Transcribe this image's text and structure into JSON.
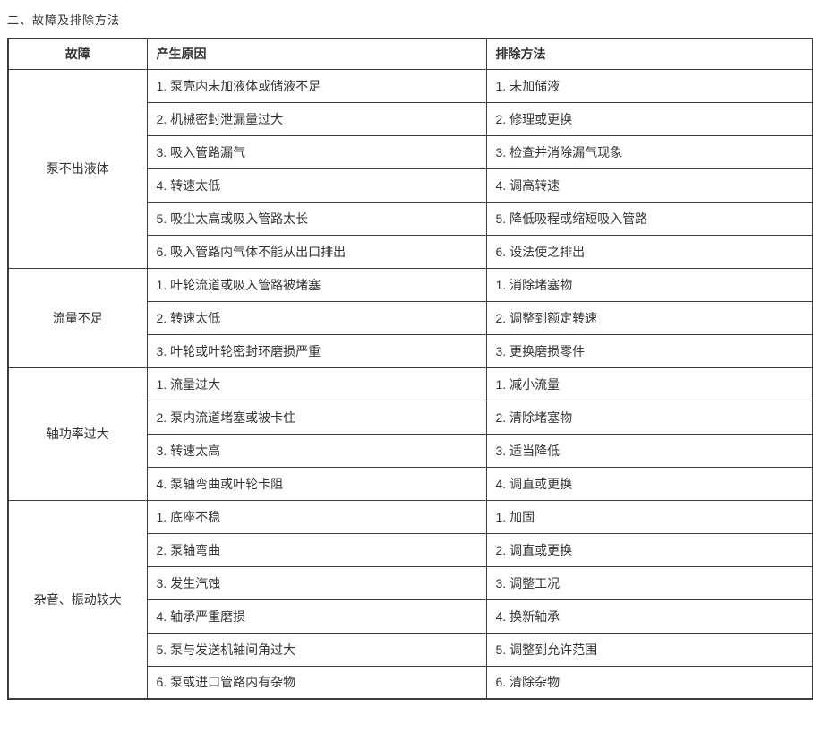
{
  "title": "二、故障及排除方法",
  "colors": {
    "background": "#ffffff",
    "text": "#333333",
    "border": "#3c3c3c"
  },
  "table": {
    "headers": [
      "故障",
      "产生原因",
      "排除方法"
    ],
    "groups": [
      {
        "fault": "泵不出液体",
        "causes": [
          "1. 泵壳内未加液体或储液不足",
          "2. 机械密封泄漏量过大",
          "3. 吸入管路漏气",
          "4. 转速太低",
          "5. 吸尘太高或吸入管路太长",
          "6. 吸入管路内气体不能从出口排出"
        ],
        "fixes": [
          "1. 未加储液",
          "2. 修理或更换",
          "3. 检查并消除漏气现象",
          "4. 调高转速",
          "5. 降低吸程或缩短吸入管路",
          "6. 设法使之排出"
        ]
      },
      {
        "fault": "流量不足",
        "causes": [
          "1. 叶轮流道或吸入管路被堵塞",
          "2. 转速太低",
          "3. 叶轮或叶轮密封环磨损严重"
        ],
        "fixes": [
          "1. 消除堵塞物",
          "2. 调整到额定转速",
          "3. 更换磨损零件"
        ]
      },
      {
        "fault": "轴功率过大",
        "causes": [
          "1. 流量过大",
          "2. 泵内流道堵塞或被卡住",
          "3. 转速太高",
          "4. 泵轴弯曲或叶轮卡阻"
        ],
        "fixes": [
          "1. 减小流量",
          "2. 清除堵塞物",
          "3. 适当降低",
          "4. 调直或更换"
        ]
      },
      {
        "fault": "杂音、振动较大",
        "causes": [
          "1. 底座不稳",
          "2. 泵轴弯曲",
          "3. 发生汽蚀",
          "4. 轴承严重磨损",
          "5. 泵与发送机轴间角过大",
          "6. 泵或进口管路内有杂物"
        ],
        "fixes": [
          "1. 加固",
          "2. 调直或更换",
          "3. 调整工况",
          "4. 换新轴承",
          "5. 调整到允许范围",
          "6. 清除杂物"
        ]
      }
    ]
  }
}
